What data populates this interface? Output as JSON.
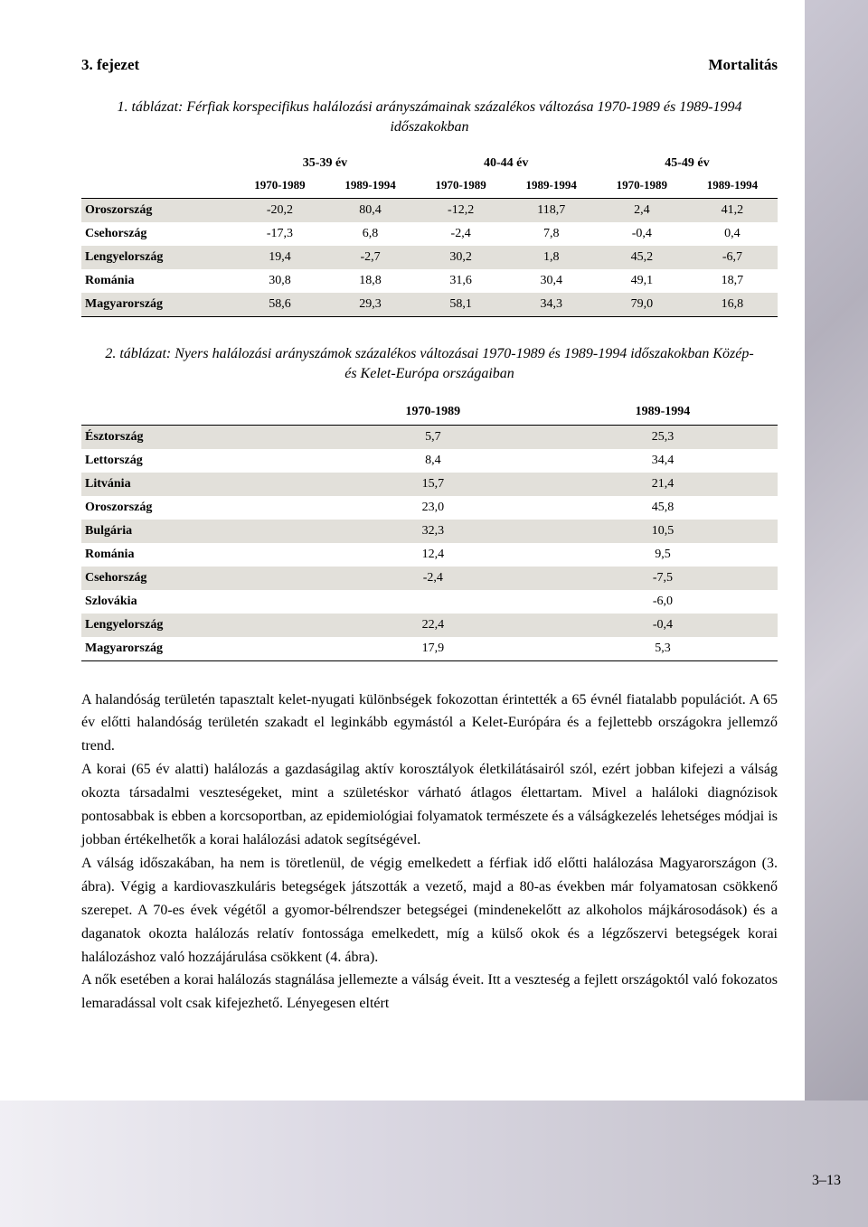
{
  "header": {
    "chapter": "3. fejezet",
    "section": "Mortalitás"
  },
  "table1": {
    "caption": "1. táblázat: Férfiak korspecifikus halálozási arányszámainak százalékos változása 1970-1989 és 1989-1994 időszakokban",
    "groups": [
      "35-39 év",
      "40-44 év",
      "45-49 év"
    ],
    "subcols": [
      "1970-1989",
      "1989-1994",
      "1970-1989",
      "1989-1994",
      "1970-1989",
      "1989-1994"
    ],
    "rows": [
      {
        "label": "Oroszország",
        "v": [
          "-20,2",
          "80,4",
          "-12,2",
          "118,7",
          "2,4",
          "41,2"
        ]
      },
      {
        "label": "Csehország",
        "v": [
          "-17,3",
          "6,8",
          "-2,4",
          "7,8",
          "-0,4",
          "0,4"
        ]
      },
      {
        "label": "Lengyelország",
        "v": [
          "19,4",
          "-2,7",
          "30,2",
          "1,8",
          "45,2",
          "-6,7"
        ]
      },
      {
        "label": "Románia",
        "v": [
          "30,8",
          "18,8",
          "31,6",
          "30,4",
          "49,1",
          "18,7"
        ]
      },
      {
        "label": "Magyarország",
        "v": [
          "58,6",
          "29,3",
          "58,1",
          "34,3",
          "79,0",
          "16,8"
        ]
      }
    ]
  },
  "table2": {
    "caption": "2. táblázat: Nyers halálozási arányszámok százalékos változásai 1970-1989 és 1989-1994 időszakokban Közép- és Kelet-Európa országaiban",
    "cols": [
      "1970-1989",
      "1989-1994"
    ],
    "rows": [
      {
        "label": "Észtország",
        "v": [
          "5,7",
          "25,3"
        ]
      },
      {
        "label": "Lettország",
        "v": [
          "8,4",
          "34,4"
        ]
      },
      {
        "label": "Litvánia",
        "v": [
          "15,7",
          "21,4"
        ]
      },
      {
        "label": "Oroszország",
        "v": [
          "23,0",
          "45,8"
        ]
      },
      {
        "label": "Bulgária",
        "v": [
          "32,3",
          "10,5"
        ]
      },
      {
        "label": "Románia",
        "v": [
          "12,4",
          "9,5"
        ]
      },
      {
        "label": "Csehország",
        "v": [
          "-2,4",
          "-7,5"
        ]
      },
      {
        "label": "Szlovákia",
        "v": [
          "",
          "-6,0"
        ]
      },
      {
        "label": "Lengyelország",
        "v": [
          "22,4",
          "-0,4"
        ]
      },
      {
        "label": "Magyarország",
        "v": [
          "17,9",
          "5,3"
        ]
      }
    ]
  },
  "paragraphs": [
    "A halandóság területén tapasztalt kelet-nyugati különbségek fokozottan érintették a 65 évnél fiatalabb populációt. A 65 év előtti halandóság területén szakadt el leginkább egymástól a Kelet-Európára és a fejlettebb országokra jellemző trend.",
    "A korai (65 év alatti) halálozás a gazdaságilag aktív korosztályok életkilátásairól szól, ezért jobban kifejezi a válság okozta társadalmi veszteségeket, mint a születéskor várható átlagos élettartam. Mivel a haláloki diagnózisok pontosabbak is ebben a korcsoportban, az epidemiológiai folyamatok természete és a válságkezelés lehetséges módjai is jobban értékelhetők a korai halálozási adatok segítségével.",
    "A válság időszakában, ha nem is töretlenül, de végig emelkedett a férfiak idő előtti halálozása Magyarországon (3. ábra). Végig a kardiovaszkuláris betegségek játszották a vezető, majd a 80-as években már folyamatosan csökkenő szerepet. A 70-es évek végétől a gyomor-bélrendszer betegségei (mindenekelőtt az alkoholos májkárosodások) és a daganatok okozta halálozás relatív fontossága emelkedett, míg a külső okok és a légzőszervi betegségek korai halálozáshoz való hozzájárulása csökkent (4. ábra).",
    "A nők esetében a korai halálozás stagnálása jellemezte a válság éveit. Itt a veszteség a fejlett országoktól való fokozatos lemaradással volt csak kifejezhető. Lényegesen eltért"
  ],
  "page_number": "3–13"
}
